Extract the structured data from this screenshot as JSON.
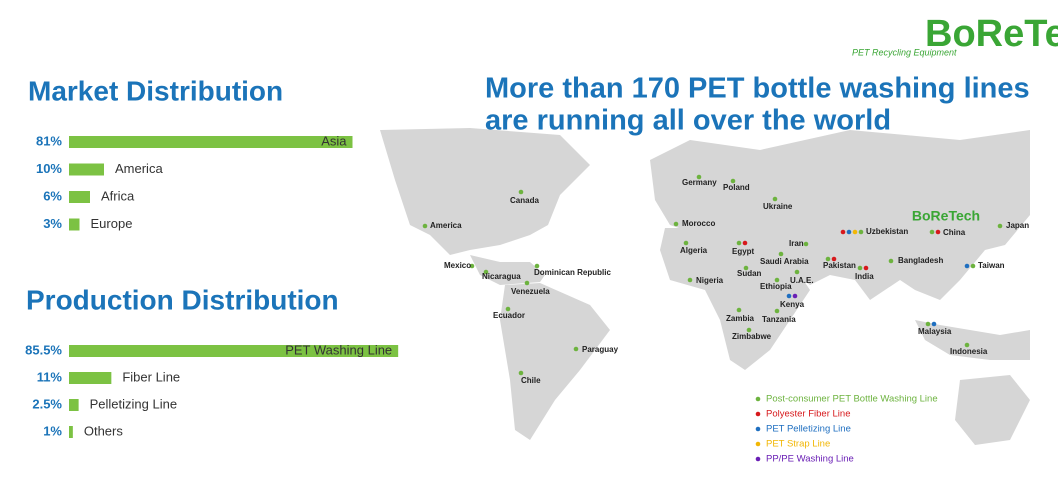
{
  "logo": {
    "name": "BoReTech",
    "tagline": "PET Recycling Equipment"
  },
  "headline": [
    "More than 170 PET bottle washing lines",
    "are running all over the world"
  ],
  "market": {
    "title": "Market Distribution",
    "items": [
      {
        "label": "81%",
        "value": 81,
        "name": "Asia"
      },
      {
        "label": "10%",
        "value": 10,
        "name": "America"
      },
      {
        "label": "6%",
        "value": 6,
        "name": "Africa"
      },
      {
        "label": "3%",
        "value": 3,
        "name": "Europe"
      }
    ]
  },
  "production": {
    "title": "Production Distribution",
    "items": [
      {
        "label": "85.5%",
        "value": 85.5,
        "name": "PET Washing Line"
      },
      {
        "label": "11%",
        "value": 11,
        "name": "Fiber Line"
      },
      {
        "label": "2.5%",
        "value": 2.5,
        "name": "Pelletizing Line"
      },
      {
        "label": "1%",
        "value": 1,
        "name": "Others"
      }
    ]
  },
  "legend": [
    {
      "label": "Post-consumer PET Bottle Washing Line",
      "color": "#6db33f"
    },
    {
      "label": "Polyester Fiber Line",
      "color": "#d7191c"
    },
    {
      "label": "PET Pelletizing Line",
      "color": "#1f6fc0"
    },
    {
      "label": "PET Strap Line",
      "color": "#f2b705"
    },
    {
      "label": "PP/PE Washing Line",
      "color": "#6a1fb5"
    }
  ],
  "cities": [
    {
      "name": "Canada",
      "colors": [
        "#6db33f"
      ]
    },
    {
      "name": "America",
      "colors": [
        "#6db33f"
      ]
    },
    {
      "name": "Mexico",
      "colors": [
        "#6db33f"
      ]
    },
    {
      "name": "Nicaragua",
      "colors": [
        "#6db33f"
      ]
    },
    {
      "name": "Dominican Republic",
      "colors": [
        "#6db33f"
      ]
    },
    {
      "name": "Venezuela",
      "colors": [
        "#6db33f"
      ]
    },
    {
      "name": "Ecuador",
      "colors": [
        "#6db33f"
      ]
    },
    {
      "name": "Paraguay",
      "colors": [
        "#6db33f"
      ]
    },
    {
      "name": "Chile",
      "colors": [
        "#6db33f"
      ]
    },
    {
      "name": "Germany",
      "colors": [
        "#6db33f"
      ]
    },
    {
      "name": "Poland",
      "colors": [
        "#6db33f"
      ]
    },
    {
      "name": "Ukraine",
      "colors": [
        "#6db33f"
      ]
    },
    {
      "name": "Morocco",
      "colors": [
        "#6db33f"
      ]
    },
    {
      "name": "Algeria",
      "colors": [
        "#6db33f"
      ]
    },
    {
      "name": "Egypt",
      "colors": [
        "#6db33f",
        "#d7191c"
      ]
    },
    {
      "name": "Nigeria",
      "colors": [
        "#6db33f"
      ]
    },
    {
      "name": "Sudan",
      "colors": [
        "#6db33f"
      ]
    },
    {
      "name": "Saudi Arabia",
      "colors": [
        "#6db33f"
      ]
    },
    {
      "name": "Iran",
      "colors": [
        "#6db33f"
      ]
    },
    {
      "name": "U.A.E.",
      "colors": [
        "#6db33f"
      ]
    },
    {
      "name": "Ethiopia",
      "colors": [
        "#6db33f"
      ]
    },
    {
      "name": "Kenya",
      "colors": [
        "#1f6fc0",
        "#6a1fb5"
      ]
    },
    {
      "name": "Zambia",
      "colors": [
        "#6db33f"
      ]
    },
    {
      "name": "Tanzania",
      "colors": [
        "#6db33f"
      ]
    },
    {
      "name": "Zimbabwe",
      "colors": [
        "#6db33f"
      ]
    },
    {
      "name": "Pakistan",
      "colors": [
        "#6db33f",
        "#d7191c"
      ]
    },
    {
      "name": "India",
      "colors": [
        "#6db33f",
        "#d7191c"
      ]
    },
    {
      "name": "Uzbekistan",
      "colors": [
        "#d7191c",
        "#1f6fc0",
        "#f2b705",
        "#6db33f"
      ]
    },
    {
      "name": "China",
      "colors": [
        "#6db33f",
        "#d7191c"
      ]
    },
    {
      "name": "Bangladesh",
      "colors": [
        "#6db33f"
      ]
    },
    {
      "name": "Taiwan",
      "colors": [
        "#1f6fc0",
        "#6db33f"
      ]
    },
    {
      "name": "Japan",
      "colors": [
        "#6db33f"
      ]
    },
    {
      "name": "Malaysia",
      "colors": [
        "#6db33f",
        "#1f6fc0"
      ]
    },
    {
      "name": "Indonesia",
      "colors": [
        "#6db33f"
      ]
    }
  ]
}
